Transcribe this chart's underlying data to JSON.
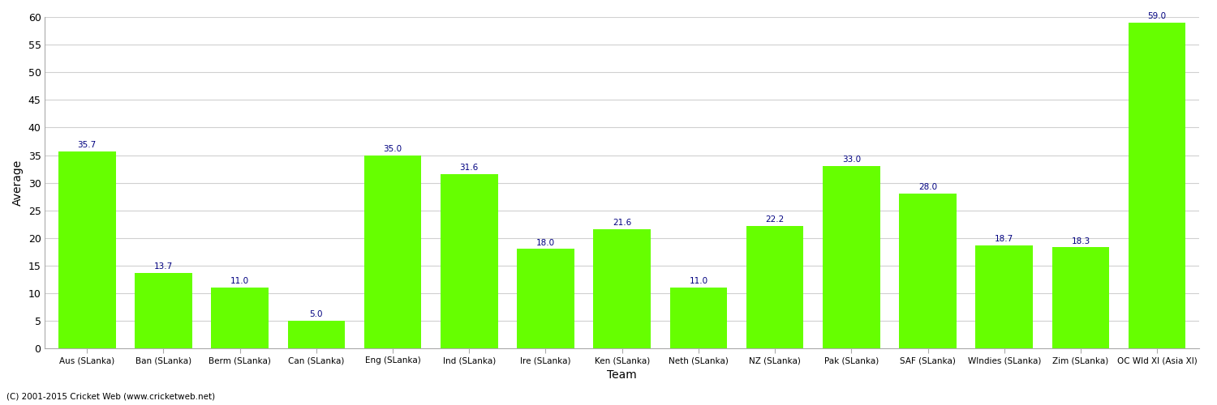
{
  "categories": [
    "Aus (SLanka)",
    "Ban (SLanka)",
    "Berm (SLanka)",
    "Can (SLanka)",
    "Eng (SLanka)",
    "Ind (SLanka)",
    "Ire (SLanka)",
    "Ken (SLanka)",
    "Neth (SLanka)",
    "NZ (SLanka)",
    "Pak (SLanka)",
    "SAF (SLanka)",
    "WIndies (SLanka)",
    "Zim (SLanka)",
    "OC Wld XI (Asia XI)"
  ],
  "values": [
    35.7,
    13.7,
    11.0,
    5.0,
    35.0,
    31.6,
    18.0,
    21.6,
    11.0,
    22.2,
    33.0,
    28.0,
    18.7,
    18.3,
    59.0
  ],
  "bar_color": "#66ff00",
  "label_color": "#000080",
  "xlabel": "Team",
  "ylabel": "Average",
  "ylim": [
    0,
    60
  ],
  "yticks": [
    0,
    5,
    10,
    15,
    20,
    25,
    30,
    35,
    40,
    45,
    50,
    55,
    60
  ],
  "background_color": "#ffffff",
  "grid_color": "#d0d0d0",
  "footer": "(C) 2001-2015 Cricket Web (www.cricketweb.net)",
  "bar_width": 0.75,
  "figwidth": 15.0,
  "figheight": 5.0,
  "dpi": 100
}
